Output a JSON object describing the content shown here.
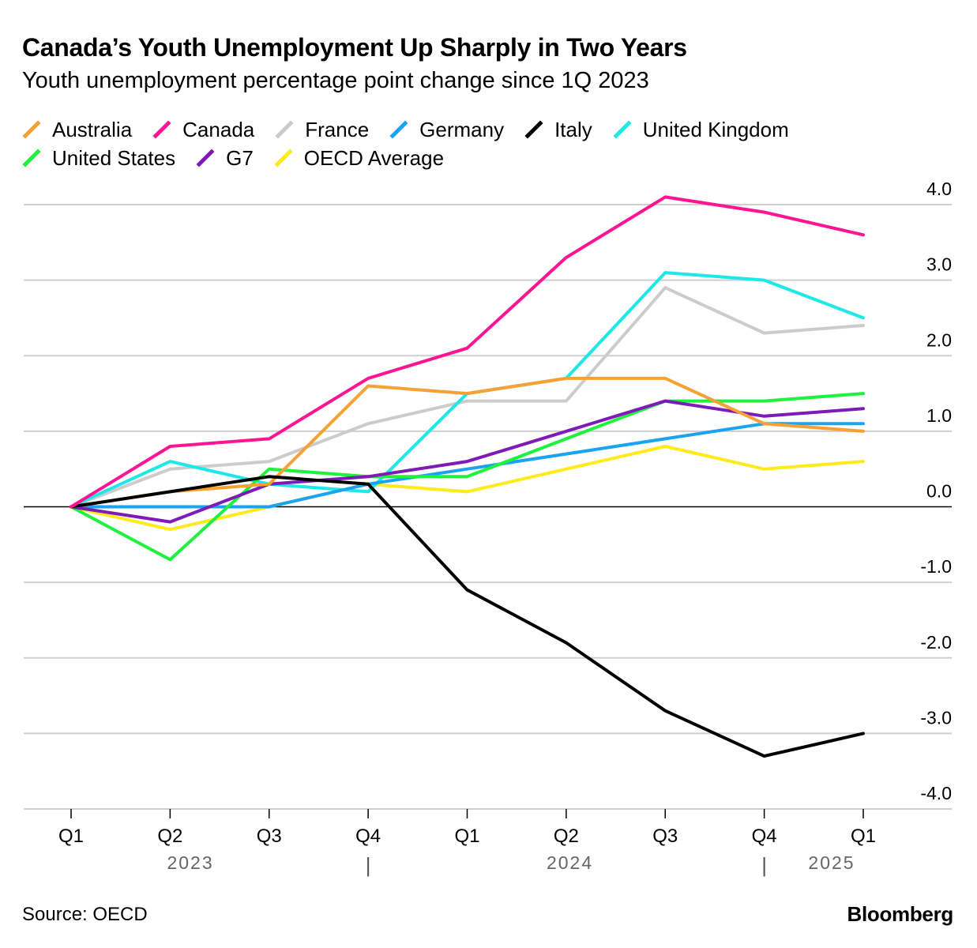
{
  "title": "Canada’s Youth Unemployment Up Sharply in Two Years",
  "subtitle": "Youth unemployment percentage point change since 1Q 2023",
  "source": "Source: OECD",
  "brand": "Bloomberg",
  "chart_data": {
    "type": "line",
    "x": [
      "Q1",
      "Q2",
      "Q3",
      "Q4",
      "Q1",
      "Q2",
      "Q3",
      "Q4",
      "Q1"
    ],
    "year_labels": [
      "2023",
      "2024",
      "2025"
    ],
    "year_separator": "|",
    "ylim": [
      -4.0,
      4.0
    ],
    "yticks": [
      "4.0",
      "3.0",
      "2.0",
      "1.0",
      "0.0",
      "-1.0",
      "-2.0",
      "-3.0",
      "-4.0"
    ],
    "ytick_values": [
      4,
      3,
      2,
      1,
      0,
      -1,
      -2,
      -3,
      -4
    ],
    "grid": true,
    "legend_position": "top-left",
    "series": [
      {
        "name": "Australia",
        "color": "#f7a034",
        "values": [
          0,
          0.2,
          0.3,
          1.6,
          1.5,
          1.7,
          1.7,
          1.1,
          1.0
        ]
      },
      {
        "name": "Canada",
        "color": "#ff1493",
        "values": [
          0,
          0.8,
          0.9,
          1.7,
          2.1,
          3.3,
          4.1,
          3.9,
          3.6
        ]
      },
      {
        "name": "France",
        "color": "#cccccc",
        "values": [
          0,
          0.5,
          0.6,
          1.1,
          1.4,
          1.4,
          2.9,
          2.3,
          2.4
        ]
      },
      {
        "name": "Germany",
        "color": "#1aa3f0",
        "values": [
          0,
          0.0,
          0.0,
          0.3,
          0.5,
          0.7,
          0.9,
          1.1,
          1.1
        ]
      },
      {
        "name": "Italy",
        "color": "#000000",
        "values": [
          0,
          0.2,
          0.4,
          0.3,
          -1.1,
          -1.8,
          -2.7,
          -3.3,
          -3.0
        ]
      },
      {
        "name": "United Kingdom",
        "color": "#1de8e8",
        "values": [
          0,
          0.6,
          0.3,
          0.2,
          1.5,
          1.7,
          3.1,
          3.0,
          2.5
        ]
      },
      {
        "name": "United States",
        "color": "#1ff23c",
        "values": [
          0,
          -0.7,
          0.5,
          0.4,
          0.4,
          0.9,
          1.4,
          1.4,
          1.5
        ]
      },
      {
        "name": "G7",
        "color": "#7d1ab8",
        "values": [
          0,
          -0.2,
          0.3,
          0.4,
          0.6,
          1.0,
          1.4,
          1.2,
          1.3
        ]
      },
      {
        "name": "OECD Average",
        "color": "#ffeb1a",
        "values": [
          0,
          -0.3,
          0.0,
          0.3,
          0.2,
          0.5,
          0.8,
          0.5,
          0.6
        ]
      }
    ]
  }
}
